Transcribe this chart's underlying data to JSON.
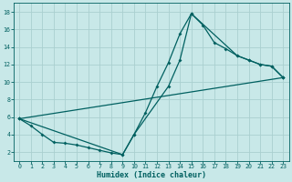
{
  "title": "",
  "xlabel": "Humidex (Indice chaleur)",
  "bg_color": "#c8e8e8",
  "grid_color": "#aacfcf",
  "line_color": "#006060",
  "xlim": [
    -0.5,
    23.5
  ],
  "ylim": [
    1,
    19
  ],
  "xticks": [
    0,
    1,
    2,
    3,
    4,
    5,
    6,
    7,
    8,
    9,
    10,
    11,
    12,
    13,
    14,
    15,
    16,
    17,
    18,
    19,
    20,
    21,
    22,
    23
  ],
  "yticks": [
    2,
    4,
    6,
    8,
    10,
    12,
    14,
    16,
    18
  ],
  "line1_x": [
    0,
    1,
    2,
    3,
    4,
    5,
    6,
    7,
    8,
    9,
    10,
    11,
    12,
    13,
    14,
    15,
    16,
    17,
    18,
    19,
    20,
    21,
    22,
    23
  ],
  "line1_y": [
    5.8,
    5.0,
    4.0,
    3.1,
    3.0,
    2.8,
    2.5,
    2.2,
    1.9,
    1.7,
    4.0,
    6.5,
    9.5,
    12.2,
    15.5,
    17.8,
    16.5,
    14.5,
    13.8,
    13.0,
    12.5,
    12.0,
    11.8,
    10.5
  ],
  "line2_x": [
    0,
    9,
    10,
    13,
    14,
    15,
    19,
    20,
    21,
    22,
    23
  ],
  "line2_y": [
    5.8,
    1.7,
    4.0,
    9.5,
    12.5,
    17.8,
    13.0,
    12.5,
    12.0,
    11.8,
    10.5
  ],
  "line3_x": [
    0,
    23
  ],
  "line3_y": [
    5.8,
    10.5
  ],
  "marker_size": 2.0,
  "line_width": 0.9,
  "xlabel_fontsize": 6.0,
  "tick_fontsize": 4.8,
  "ylabel_fontsize": 5.5
}
